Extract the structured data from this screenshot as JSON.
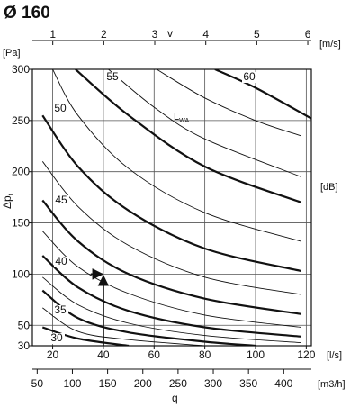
{
  "title": "Ø 160",
  "chart_data": {
    "type": "line",
    "title": "Ø 160",
    "y_axis": {
      "label": "Δp",
      "label_sub": "t",
      "unit": "[Pa]",
      "range": [
        30,
        300
      ],
      "ticks": [
        30,
        50,
        100,
        150,
        200,
        250,
        300
      ]
    },
    "x_axis_bottom": {
      "unit": "[l/s]",
      "range": [
        12,
        122
      ],
      "ticks": [
        20,
        40,
        60,
        80,
        100,
        120
      ]
    },
    "x_axis_flow_m3h": {
      "label": "q",
      "unit": "[m3/h]",
      "range": [
        43.2,
        439.2
      ],
      "ticks": [
        50,
        100,
        150,
        200,
        250,
        300,
        350,
        400
      ]
    },
    "x_axis_top": {
      "label": "v",
      "unit": "[m/s]",
      "range": [
        0.6,
        6.07
      ],
      "ticks": [
        1,
        2,
        3,
        4,
        5,
        6
      ]
    },
    "right_label": "[dB]",
    "lwa_label": "L",
    "lwa_label_sub": "WA",
    "sound_levels_db": [
      30,
      35,
      40,
      45,
      50,
      55,
      60
    ],
    "sound_curves": [
      {
        "name": "30",
        "heavy": true,
        "points": [
          [
            16,
            48
          ],
          [
            30,
            37
          ],
          [
            50,
            30
          ]
        ]
      },
      {
        "name": "",
        "heavy": false,
        "points": [
          [
            16,
            67
          ],
          [
            30,
            44
          ],
          [
            50,
            36
          ],
          [
            80,
            30
          ]
        ]
      },
      {
        "name": "35",
        "heavy": true,
        "points": [
          [
            16,
            84
          ],
          [
            30,
            57
          ],
          [
            50,
            43
          ],
          [
            80,
            34
          ],
          [
            100,
            30
          ]
        ]
      },
      {
        "name": "",
        "heavy": false,
        "points": [
          [
            16,
            97
          ],
          [
            30,
            70
          ],
          [
            50,
            52
          ],
          [
            80,
            40
          ],
          [
            118,
            33
          ]
        ]
      },
      {
        "name": "40",
        "heavy": true,
        "points": [
          [
            16,
            118
          ],
          [
            30,
            87
          ],
          [
            50,
            64
          ],
          [
            80,
            48
          ],
          [
            118,
            39
          ]
        ]
      },
      {
        "name": "",
        "heavy": false,
        "points": [
          [
            16,
            142
          ],
          [
            30,
            107
          ],
          [
            50,
            81
          ],
          [
            80,
            60
          ],
          [
            118,
            48
          ]
        ]
      },
      {
        "name": "45",
        "heavy": true,
        "points": [
          [
            16,
            172
          ],
          [
            30,
            132
          ],
          [
            50,
            100
          ],
          [
            80,
            76
          ],
          [
            118,
            61
          ]
        ]
      },
      {
        "name": "",
        "heavy": false,
        "points": [
          [
            16,
            210
          ],
          [
            30,
            166
          ],
          [
            50,
            128
          ],
          [
            80,
            97
          ],
          [
            118,
            80
          ]
        ]
      },
      {
        "name": "50",
        "heavy": true,
        "points": [
          [
            16,
            255
          ],
          [
            30,
            205
          ],
          [
            50,
            162
          ],
          [
            80,
            125
          ],
          [
            118,
            103
          ]
        ]
      },
      {
        "name": "",
        "heavy": false,
        "points": [
          [
            20,
            300
          ],
          [
            30,
            255
          ],
          [
            50,
            203
          ],
          [
            80,
            160
          ],
          [
            118,
            132
          ]
        ]
      },
      {
        "name": "55",
        "heavy": true,
        "points": [
          [
            29,
            300
          ],
          [
            50,
            255
          ],
          [
            80,
            205
          ],
          [
            118,
            170
          ]
        ]
      },
      {
        "name": "",
        "heavy": false,
        "points": [
          [
            42,
            300
          ],
          [
            60,
            263
          ],
          [
            80,
            232
          ],
          [
            118,
            195
          ]
        ]
      },
      {
        "name": "",
        "heavy": false,
        "points": [
          [
            61,
            300
          ],
          [
            80,
            272
          ],
          [
            100,
            250
          ],
          [
            118,
            235
          ]
        ]
      },
      {
        "name": "60",
        "heavy": true,
        "points": [
          [
            84,
            300
          ],
          [
            100,
            282
          ],
          [
            122,
            252
          ]
        ]
      }
    ],
    "example": {
      "q_ls": 40,
      "dp_pa": 100
    },
    "grid": true
  }
}
